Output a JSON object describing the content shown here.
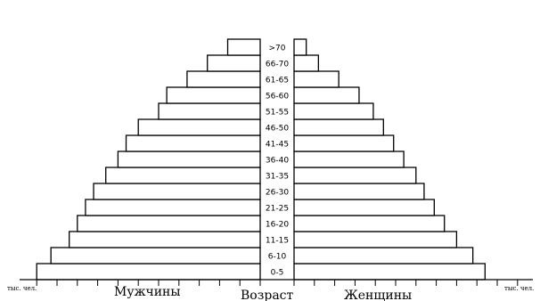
{
  "chart_data": {
    "type": "bar",
    "orientation": "horizontal",
    "layout": "population-pyramid",
    "categories": [
      "0-5",
      "6-10",
      "11-15",
      "16-20",
      "21-25",
      "26-30",
      "31-35",
      "36-40",
      "41-45",
      "46-50",
      "51-55",
      "56-60",
      "61-65",
      "66-70",
      ">70"
    ],
    "series": [
      {
        "name": "Мужчины",
        "side": "left",
        "values": [
          11.0,
          10.3,
          9.4,
          9.0,
          8.6,
          8.2,
          7.6,
          7.0,
          6.6,
          6.0,
          5.0,
          4.6,
          3.6,
          2.6,
          1.6
        ]
      },
      {
        "name": "Женщины",
        "side": "right",
        "values": [
          9.4,
          8.8,
          8.0,
          7.4,
          6.9,
          6.4,
          6.0,
          5.4,
          4.9,
          4.4,
          3.9,
          3.2,
          2.2,
          1.2,
          0.6
        ]
      }
    ],
    "xlabel_left": "тыс. чел.",
    "xlabel_right": "тыс. чел.",
    "center_label": "Возраст",
    "ticks_per_side": 18,
    "value_per_tick": 1,
    "grid": false,
    "legend": "none"
  }
}
